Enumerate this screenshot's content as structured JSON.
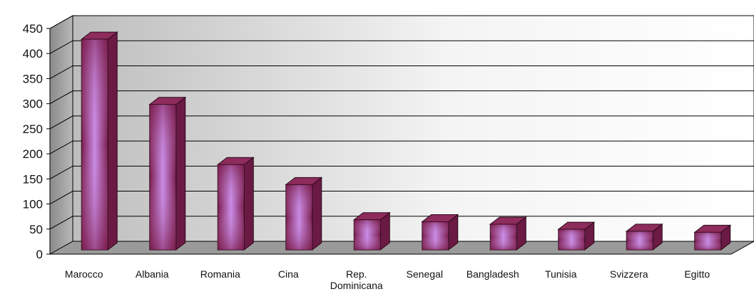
{
  "chart_data": {
    "type": "bar",
    "style": "3d-column",
    "categories": [
      "Marocco",
      "Albania",
      "Romania",
      "Cina",
      "Rep. Dominicana",
      "Senegal",
      "Bangladesh",
      "Tunisia",
      "Svizzera",
      "Egitto"
    ],
    "category_lines": [
      [
        "Marocco"
      ],
      [
        "Albania"
      ],
      [
        "Romania"
      ],
      [
        "Cina"
      ],
      [
        "Rep.",
        "Dominicana"
      ],
      [
        "Senegal"
      ],
      [
        "Bangladesh"
      ],
      [
        "Tunisia"
      ],
      [
        "Svizzera"
      ],
      [
        "Egitto"
      ]
    ],
    "values": [
      420,
      290,
      170,
      130,
      60,
      56,
      51,
      41,
      37,
      35
    ],
    "ylim": [
      0,
      450
    ],
    "yticks": [
      0,
      50,
      100,
      150,
      200,
      250,
      300,
      350,
      400,
      450
    ],
    "grid": true,
    "legend": "none",
    "colors": {
      "bar_edge": "#7a1a4a",
      "bar_mid": "#c98be6",
      "bar_top": "#8e2c5c",
      "bar_side": "#6b1a44",
      "wall_light": "#f2f2f2",
      "wall_dark": "#bdbdbd",
      "floor": "#9a9a9a",
      "gridline": "#000000"
    }
  }
}
